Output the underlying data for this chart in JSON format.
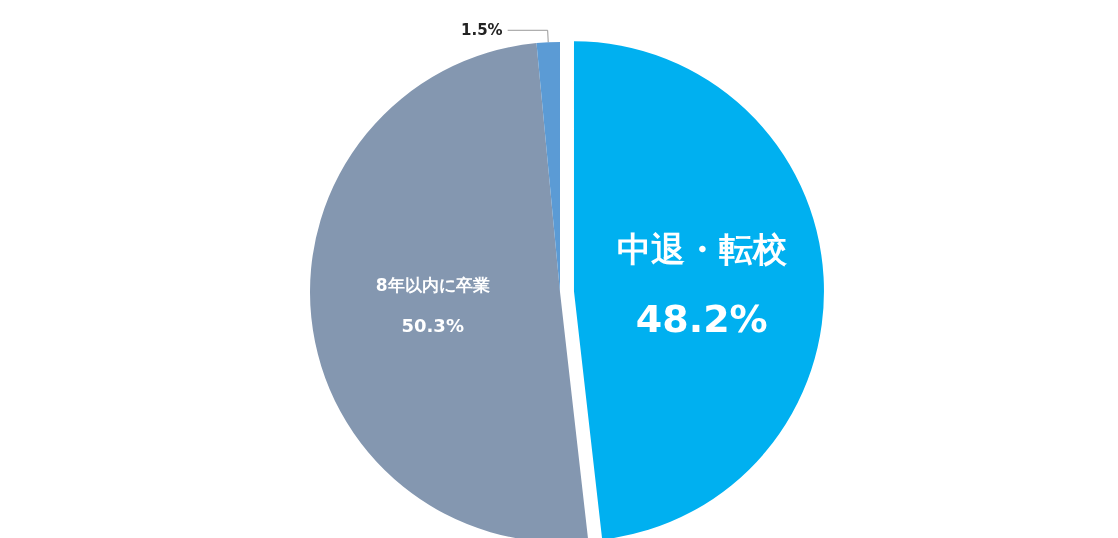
{
  "chart_data": {
    "type": "pie",
    "categories": [
      "中退・転校",
      "8年以内に卒業",
      null
    ],
    "values": [
      48.2,
      50.3,
      1.5
    ],
    "value_labels": [
      "48.2%",
      "50.3%",
      "1.5%"
    ],
    "colors": [
      "#00b0f0",
      "#8497b0",
      "#5b9bd5"
    ],
    "legend": false
  }
}
